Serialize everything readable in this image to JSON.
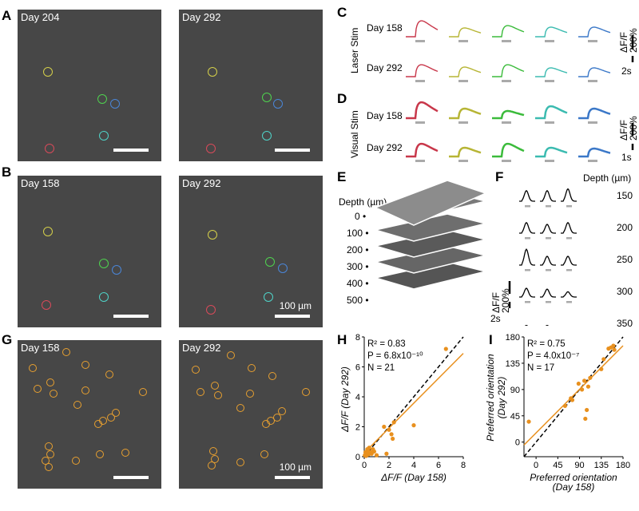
{
  "panels": {
    "A": "A",
    "B": "B",
    "C": "C",
    "D": "D",
    "E": "E",
    "F": "F",
    "G": "G",
    "H": "H",
    "I": "I"
  },
  "images": {
    "A_left_day": "Day 204",
    "A_right_day": "Day 292",
    "B_left_day": "Day 158",
    "B_right_day": "Day 292",
    "G_left_day": "Day 158",
    "G_right_day": "Day 292",
    "scale_label": "100 µm"
  },
  "traces": {
    "colors": [
      "#c8374a",
      "#b7b535",
      "#3bbb3b",
      "#3bbbb0",
      "#3b78c8"
    ],
    "C": {
      "condition": "Laser Stim",
      "rows": [
        "Day 158",
        "Day 292"
      ],
      "y_scale": "ΔF/F",
      "y_scale_val": "200%",
      "x_scale": "2s"
    },
    "D": {
      "condition": "Visual Stim",
      "rows": [
        "Day 158",
        "Day 292"
      ],
      "y_scale": "ΔF/F",
      "y_scale_val": "200%",
      "x_scale": "1s"
    }
  },
  "depth_stack": {
    "title": "Depth (µm)",
    "depths": [
      "0",
      "100",
      "200",
      "300",
      "400",
      "500"
    ]
  },
  "depth_traces": {
    "title": "Depth (µm)",
    "depths": [
      "150",
      "200",
      "250",
      "300",
      "350"
    ],
    "y_scale": "ΔF/F",
    "y_scale_val": "200%",
    "x_scale": "2s"
  },
  "chart_data": [
    {
      "type": "scatter",
      "xlabel": "ΔF/F (Day 158)",
      "ylabel": "ΔF/F (Day 292)",
      "xlim": [
        0,
        8
      ],
      "ylim": [
        0,
        8
      ],
      "xticks": [
        "0",
        "2",
        "4",
        "6",
        "8"
      ],
      "yticks": [
        "0",
        "2",
        "4",
        "6",
        "8"
      ],
      "stats": [
        "R² = 0.83",
        "P = 6.8x10⁻¹⁰",
        "N = 21"
      ],
      "points": [
        [
          0.05,
          0.1
        ],
        [
          0.1,
          0.3
        ],
        [
          0.15,
          0.05
        ],
        [
          0.2,
          0.2
        ],
        [
          0.3,
          0.4
        ],
        [
          0.35,
          0.15
        ],
        [
          0.4,
          0.6
        ],
        [
          0.5,
          0.3
        ],
        [
          0.6,
          0.2
        ],
        [
          0.7,
          0.5
        ],
        [
          1.6,
          2.0
        ],
        [
          2.0,
          1.8
        ],
        [
          2.2,
          1.5
        ],
        [
          2.3,
          1.2
        ],
        [
          2.4,
          2.3
        ],
        [
          1.8,
          0.2
        ],
        [
          1.0,
          0.1
        ],
        [
          0.8,
          0.35
        ],
        [
          0.25,
          0.5
        ],
        [
          4.0,
          2.1
        ],
        [
          6.6,
          7.2
        ]
      ],
      "fit": [
        [
          0,
          0.25
        ],
        [
          8,
          6.9
        ]
      ],
      "identity": [
        [
          0,
          0
        ],
        [
          8,
          8
        ]
      ]
    },
    {
      "type": "scatter",
      "xlabel": "Preferred orientation (Day 158)",
      "ylabel": "Preferred orientation (Day 292)",
      "xlim": [
        -25,
        180
      ],
      "ylim": [
        -25,
        180
      ],
      "xticks": [
        "0",
        "45",
        "90",
        "135",
        "180"
      ],
      "yticks": [
        "0",
        "45",
        "90",
        "135",
        "180"
      ],
      "stats": [
        "R² = 0.75",
        "P = 4.0x10⁻⁷",
        "N = 17"
      ],
      "points": [
        [
          -15,
          35
        ],
        [
          60,
          62
        ],
        [
          72,
          75
        ],
        [
          75,
          72
        ],
        [
          88,
          100
        ],
        [
          95,
          90
        ],
        [
          100,
          105
        ],
        [
          102,
          40
        ],
        [
          105,
          55
        ],
        [
          108,
          95
        ],
        [
          112,
          110
        ],
        [
          135,
          125
        ],
        [
          140,
          142
        ],
        [
          150,
          160
        ],
        [
          155,
          162
        ],
        [
          160,
          165
        ],
        [
          162,
          158
        ]
      ],
      "fit": [
        [
          -25,
          -5
        ],
        [
          180,
          165
        ]
      ],
      "identity": [
        [
          -25,
          -25
        ],
        [
          180,
          180
        ]
      ]
    }
  ]
}
